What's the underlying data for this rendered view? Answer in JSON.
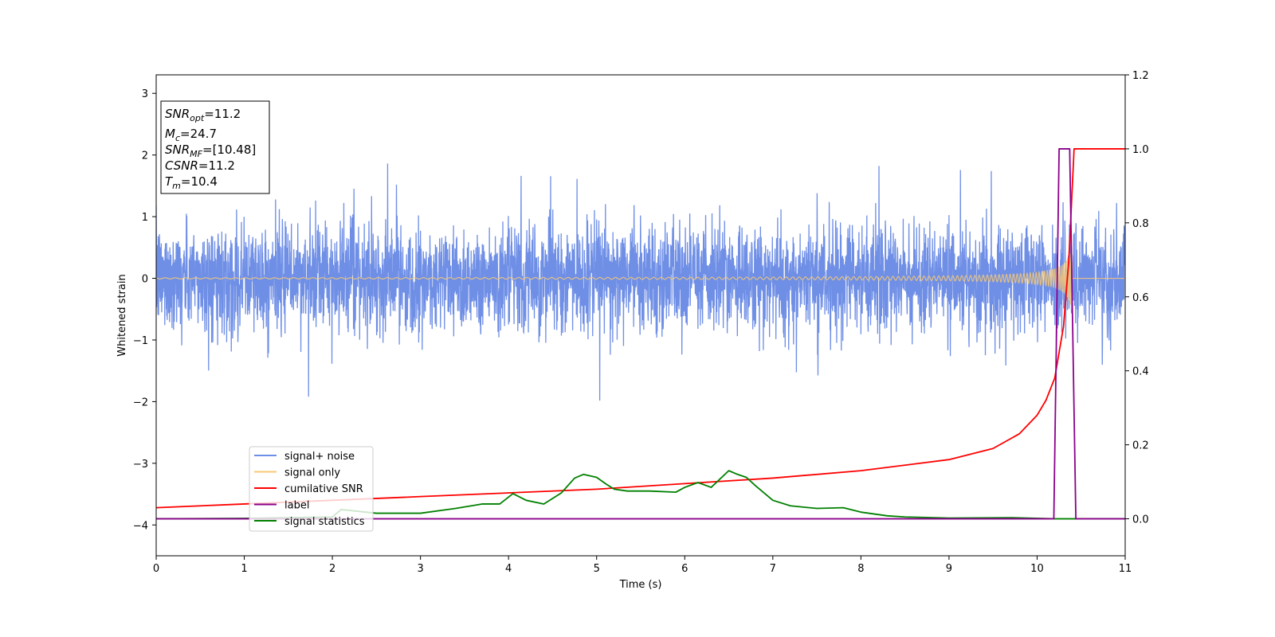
{
  "chart_data": {
    "type": "line",
    "xlabel": "Time (s)",
    "ylabel": "Whitened strain",
    "xlim": [
      0,
      11
    ],
    "ylim": [
      -4.5,
      3.3
    ],
    "y2lim": [
      -0.1,
      1.2
    ],
    "x_ticks": [
      0,
      1,
      2,
      3,
      4,
      5,
      6,
      7,
      8,
      9,
      10,
      11
    ],
    "y_ticks": [
      -4,
      -3,
      -2,
      -1,
      0,
      1,
      2,
      3
    ],
    "y2_ticks": [
      0.0,
      0.2,
      0.4,
      0.6,
      0.8,
      1.0,
      1.2
    ],
    "grid": false,
    "legend_position": "lower-left",
    "annotation": [
      {
        "var": "SNR",
        "sub": "opt",
        "value": "11.2"
      },
      {
        "var": "M",
        "sub": "c",
        "value": "24.7"
      },
      {
        "var": "SNR",
        "sub": "MF",
        "value": "[10.48]"
      },
      {
        "var": "CSNR",
        "sub": "",
        "value": "11.2"
      },
      {
        "var": "T",
        "sub": "m",
        "value": "10.4"
      }
    ],
    "series": [
      {
        "name": "signal+ noise",
        "color": "#6f8fe6",
        "axis": "left",
        "noise_amplitude": 1.0,
        "peak_range": [
          -2.25,
          1.85
        ]
      },
      {
        "name": "signal only",
        "color": "#f7c873",
        "axis": "left",
        "chirp_merger_time": 10.4,
        "peak_amplitude": 0.6
      },
      {
        "name": "cumilative SNR",
        "color": "#ff0000",
        "axis": "right",
        "x": [
          0,
          1,
          2,
          3,
          4,
          5,
          6,
          7,
          8,
          9,
          9.5,
          9.8,
          10.0,
          10.1,
          10.2,
          10.3,
          10.36,
          10.4,
          10.42,
          11
        ],
        "y": [
          0.03,
          0.04,
          0.05,
          0.06,
          0.07,
          0.08,
          0.095,
          0.11,
          0.13,
          0.16,
          0.19,
          0.23,
          0.28,
          0.32,
          0.38,
          0.52,
          0.7,
          0.9,
          1.0,
          1.0
        ]
      },
      {
        "name": "label",
        "color": "#8b008b",
        "axis": "right",
        "x": [
          0,
          10.19,
          10.25,
          10.37,
          10.44,
          11
        ],
        "y": [
          0,
          0,
          1.0,
          1.0,
          0,
          0
        ]
      },
      {
        "name": "signal statistics",
        "color": "#008000",
        "axis": "right",
        "x": [
          0,
          1,
          2,
          2.1,
          2.5,
          3,
          3.4,
          3.7,
          3.9,
          4.05,
          4.2,
          4.4,
          4.6,
          4.75,
          4.85,
          5.0,
          5.1,
          5.2,
          5.35,
          5.6,
          5.9,
          6.0,
          6.15,
          6.3,
          6.5,
          6.6,
          6.7,
          6.8,
          7.0,
          7.2,
          7.5,
          7.8,
          8.0,
          8.3,
          8.5,
          9.0,
          9.7,
          10.2,
          11
        ],
        "y": [
          0,
          0.001,
          0.005,
          0.025,
          0.015,
          0.015,
          0.028,
          0.04,
          0.04,
          0.068,
          0.05,
          0.04,
          0.07,
          0.11,
          0.12,
          0.112,
          0.095,
          0.08,
          0.075,
          0.075,
          0.072,
          0.085,
          0.098,
          0.085,
          0.13,
          0.12,
          0.112,
          0.09,
          0.05,
          0.035,
          0.028,
          0.03,
          0.018,
          0.008,
          0.005,
          0.002,
          0.003,
          0.0,
          0.0
        ]
      }
    ]
  }
}
